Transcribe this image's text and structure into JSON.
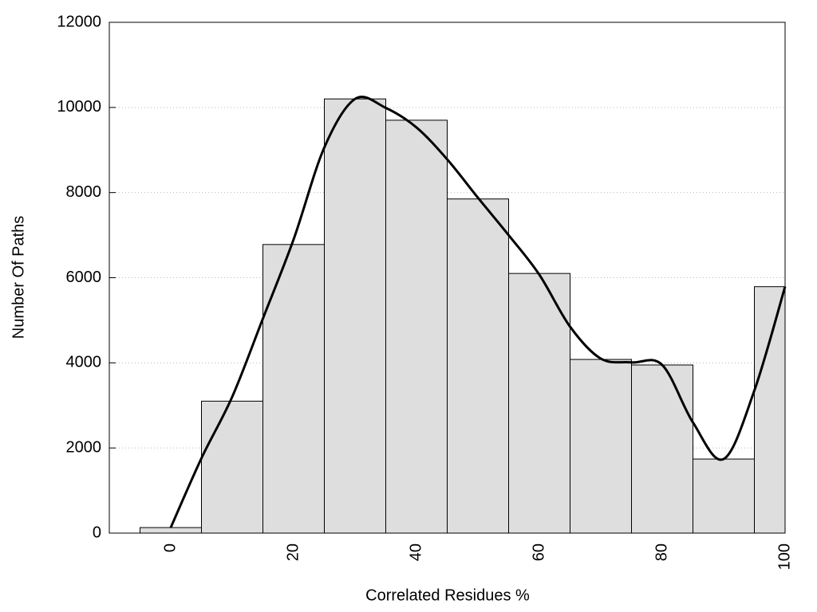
{
  "chart_data": {
    "type": "histogram",
    "xlabel": "Correlated Residues %",
    "ylabel": "Number Of Paths",
    "bins": [
      -5,
      5,
      15,
      25,
      35,
      45,
      55,
      65,
      75,
      85,
      95,
      100
    ],
    "counts": [
      130,
      3100,
      6780,
      10200,
      9700,
      7850,
      6100,
      4080,
      3950,
      1740,
      5790
    ],
    "color": "#dedede",
    "curve": {
      "color": "#000000",
      "x": [
        0,
        5,
        10,
        15,
        20,
        25,
        30,
        35,
        40,
        45,
        50,
        55,
        60,
        65,
        70,
        75,
        80,
        85,
        90,
        95,
        100
      ],
      "values": [
        130,
        1760,
        3200,
        5040,
        6900,
        9060,
        10200,
        9990,
        9530,
        8780,
        7880,
        7000,
        6070,
        4850,
        4100,
        4010,
        3950,
        2600,
        1740,
        3350,
        5790
      ]
    },
    "xlim": [
      -10,
      100
    ],
    "ylim": [
      0,
      12000
    ],
    "xticks": [
      0,
      20,
      40,
      60,
      80,
      100
    ],
    "yticks": [
      0,
      2000,
      4000,
      6000,
      8000,
      10000,
      12000
    ],
    "grid": true
  }
}
